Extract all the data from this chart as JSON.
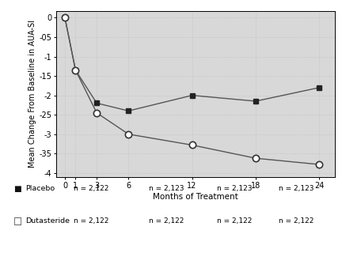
{
  "placebo_x": [
    0,
    1,
    3,
    6,
    12,
    18,
    24
  ],
  "placebo_y": [
    0,
    -1.35,
    -2.2,
    -2.4,
    -2.0,
    -2.15,
    -1.8
  ],
  "dutasteride_x": [
    0,
    1,
    3,
    6,
    12,
    18,
    24
  ],
  "dutasteride_y": [
    0,
    -1.35,
    -2.45,
    -3.0,
    -3.28,
    -3.62,
    -3.78
  ],
  "line_color": "#555555",
  "xlabel": "Months of Treatment",
  "ylabel": "Mean Change From Baseline in AUA-SI",
  "xlim": [
    -0.8,
    25.5
  ],
  "ylim": [
    -4.1,
    0.18
  ],
  "xticks": [
    0,
    1,
    3,
    6,
    12,
    18,
    24
  ],
  "xtick_labels": [
    "0",
    "1",
    "3",
    "6",
    "12",
    "18",
    "24"
  ],
  "yticks": [
    0,
    -0.5,
    -1,
    -1.5,
    -2,
    -2.5,
    -3,
    -3.5,
    -4
  ],
  "ytick_labels": [
    "0",
    "-05",
    "-1",
    "-15",
    "-2",
    "-25",
    "-3",
    "-35",
    "-4"
  ],
  "bg_color": "#d8d8d8",
  "legend_placebo": "Placebo",
  "legend_dutasteride": "Dutasteride",
  "n_placebo_0": "n = 2,122",
  "n_placebo_12": "n = 2,123",
  "n_placebo_18": "n = 2,123",
  "n_placebo_24": "n = 2,123",
  "n_dutasteride_0": "n = 2,122",
  "n_dutasteride_12": "n = 2,122",
  "n_dutasteride_18": "n = 2,122",
  "n_dutasteride_24": "n = 2,122"
}
